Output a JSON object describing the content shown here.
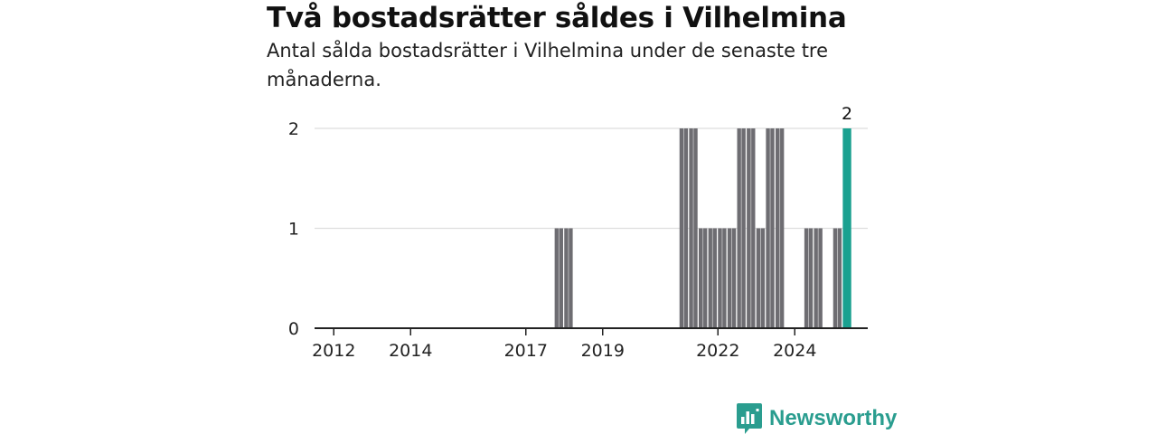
{
  "header": {
    "title": "Två bostadsrätter såldes i Vilhelmina",
    "subtitle": "Antal sålda bostadsrätter i Vilhelmina under de senaste tre månaderna."
  },
  "brand": {
    "name": "Newsworthy",
    "icon": "newsworthy-logo-icon",
    "color": "#2a9d8f"
  },
  "colors": {
    "bar": "#6e6d72",
    "highlight": "#1aa190",
    "grid": "#dddddd",
    "axis": "#222222"
  },
  "chart_data": {
    "type": "bar",
    "x_unit": "quarter",
    "ylim": [
      0,
      2
    ],
    "yticks": [
      0,
      1,
      2
    ],
    "xticks": [
      "2012",
      "2014",
      "2017",
      "2019",
      "2022",
      "2024"
    ],
    "grid": true,
    "series": [
      {
        "values": [
          {
            "x": "2017 Q4",
            "y": 1
          },
          {
            "x": "2018 Q1",
            "y": 1
          },
          {
            "x": "2021 Q1",
            "y": 2
          },
          {
            "x": "2021 Q2",
            "y": 2
          },
          {
            "x": "2021 Q3",
            "y": 1
          },
          {
            "x": "2021 Q4",
            "y": 1
          },
          {
            "x": "2022 Q1",
            "y": 1
          },
          {
            "x": "2022 Q2",
            "y": 1
          },
          {
            "x": "2022 Q3",
            "y": 2
          },
          {
            "x": "2022 Q4",
            "y": 2
          },
          {
            "x": "2023 Q1",
            "y": 1
          },
          {
            "x": "2023 Q2",
            "y": 2
          },
          {
            "x": "2023 Q3",
            "y": 2
          },
          {
            "x": "2024 Q2",
            "y": 1
          },
          {
            "x": "2024 Q3",
            "y": 1
          },
          {
            "x": "2025 Q1",
            "y": 1
          }
        ]
      }
    ],
    "highlight": {
      "x": "2025 Q2",
      "y": 2,
      "label": "2"
    }
  }
}
